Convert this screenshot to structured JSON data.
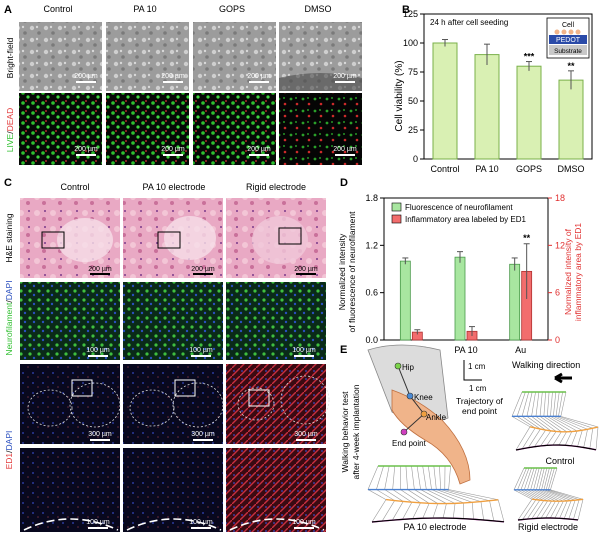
{
  "panels": {
    "A": {
      "letter": "A",
      "columns": [
        "Control",
        "PA 10",
        "GOPS",
        "DMSO"
      ],
      "row_labels": {
        "bright": "Bright-field",
        "live": "LIVE",
        "slash": "/",
        "dead": "DEAD"
      },
      "scalebar": "200 µm",
      "colors": {
        "live": "#2fbf2f",
        "dead": "#e23b3b"
      }
    },
    "B": {
      "letter": "B",
      "annotation": "24 h after cell seeding",
      "inset": {
        "cell": "Cell",
        "pedot": "PEDOT",
        "substrate": "Substrate"
      },
      "colors": {
        "bar": "#d9f0b3",
        "edge": "#7ab04a"
      }
    },
    "C": {
      "letter": "C",
      "columns": [
        "Control",
        "PA 10 electrode",
        "Rigid electrode"
      ],
      "row_labels": {
        "he": "H&E staining",
        "nf1": "Neurofilament",
        "nf2": "/",
        "nf3": "DAPI",
        "ed1": "ED1",
        "ed2": "/",
        "ed3": "DAPI"
      },
      "scalebars": {
        "he": "200 µm",
        "nf": "100 µm",
        "ed_low": "300 µm",
        "ed_high": "100 µm"
      }
    },
    "D": {
      "letter": "D",
      "legend": [
        "Fluorescence of neurofilament",
        "Inflammatory area labeled by ED1"
      ],
      "colors": {
        "green": "#a8e6a0",
        "red": "#f26d6d",
        "right_axis": "#e03030"
      }
    },
    "E": {
      "letter": "E",
      "vertical_label": [
        "Walking behavior test",
        "after 4-week implantation"
      ],
      "joints": [
        "Hip",
        "Knee",
        "Ankle",
        "End point"
      ],
      "scale": [
        "1 cm",
        "1 cm"
      ],
      "direction": "Walking direction",
      "trajectory": [
        "Trajectory of",
        "end point"
      ],
      "groups": [
        "Control",
        "PA 10 electrode",
        "Rigid electrode"
      ]
    }
  },
  "chart_data": [
    {
      "type": "bar",
      "panel": "B",
      "title": "",
      "categories": [
        "Control",
        "PA 10",
        "GOPS",
        "DMSO"
      ],
      "values": [
        100,
        90,
        80,
        68
      ],
      "errors": [
        3,
        9,
        4,
        8
      ],
      "significance": [
        "",
        "",
        "***",
        "**"
      ],
      "xlabel": "",
      "ylabel": "Cell viability (%)",
      "ylim": [
        0,
        125
      ],
      "yticks": [
        "0",
        "25",
        "50",
        "75",
        "100",
        "125"
      ]
    },
    {
      "type": "bar",
      "panel": "D",
      "categories": [
        "Control",
        "PA 10",
        "Au"
      ],
      "series": [
        {
          "name": "Fluorescence of neurofilament",
          "axis": "left",
          "values": [
            1.0,
            1.05,
            0.96
          ],
          "errors": [
            0.04,
            0.07,
            0.08
          ]
        },
        {
          "name": "Inflammatory area labeled by ED1",
          "axis": "right",
          "values": [
            1.0,
            1.1,
            8.7
          ],
          "errors": [
            0.3,
            0.6,
            3.5
          ]
        }
      ],
      "significance": [
        "",
        "",
        "**"
      ],
      "ylabel_left": "Normalized intensity of fluorescence of neurofilament",
      "ylabel_right": "Normalized intensity of inflammatory area by ED1",
      "ylim_left": [
        0,
        1.8
      ],
      "ylim_right": [
        0,
        18
      ],
      "yticks_left": [
        "0.0",
        "0.6",
        "1.2",
        "1.8"
      ],
      "yticks_right": [
        "0",
        "6",
        "12",
        "18"
      ]
    }
  ]
}
